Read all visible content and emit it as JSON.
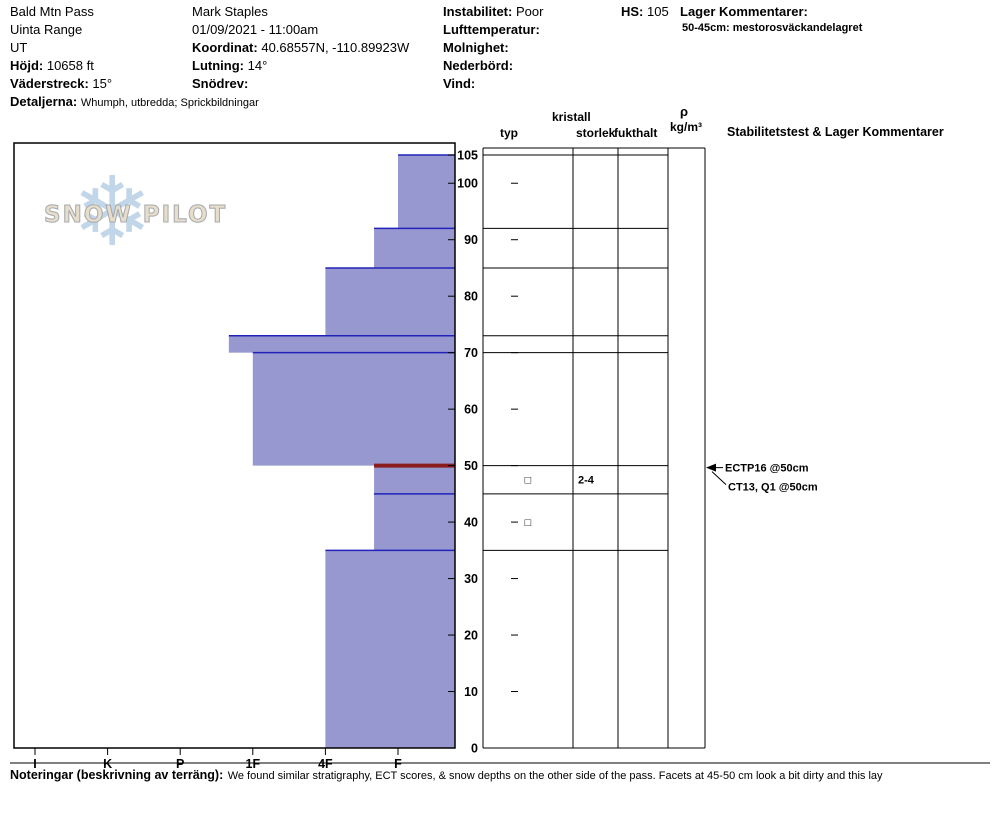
{
  "header": {
    "location": {
      "site": "Bald Mtn Pass",
      "range": "Uinta Range",
      "state": "UT"
    },
    "elevation": {
      "label": "Höjd:",
      "value": "10658 ft"
    },
    "aspect": {
      "label": "Väderstreck:",
      "value": "15°"
    },
    "details": {
      "label": "Detaljerna:",
      "value": "Whumph, utbredda;  Sprickbildningar"
    },
    "observer": "Mark Staples",
    "datetime": "01/09/2021 - 11:00am",
    "coordinates": {
      "label": "Koordinat:",
      "value": "40.68557N, -110.89923W"
    },
    "slope_angle": {
      "label": "Lutning:",
      "value": "14°"
    },
    "wind_drift": {
      "label": "Snödrev:",
      "value": ""
    },
    "instability": {
      "label": "Instabilitet:",
      "value": "Poor"
    },
    "air_temperature": {
      "label": "Lufttemperatur:",
      "value": ""
    },
    "sky_cover": {
      "label": "Molnighet:",
      "value": ""
    },
    "precipitation": {
      "label": "Nederbörd:",
      "value": ""
    },
    "wind": {
      "label": "Vind:",
      "value": ""
    },
    "snow_height": {
      "label": "HS:",
      "value": "105"
    },
    "layer_comments": {
      "label": "Lager Kommentarer:",
      "value": "50-45cm: mestorosväckandelagret"
    }
  },
  "watermark": {
    "text": "SNOW PILOT",
    "snowflake": "❄"
  },
  "grid_headers": {
    "grain_type": "typ",
    "crystal_line1": "kristall",
    "crystal_line2": "storlek",
    "moisture": "fukthalt",
    "density_line1": "ρ",
    "density_line2": "kg/m³",
    "stability": "Stabilitetstest & Lager Kommentarer"
  },
  "chart_data": {
    "type": "bar",
    "subtype": "snow-hardness-profile",
    "depth_unit": "cm",
    "depth_max": 105,
    "depth_ticks": [
      0,
      10,
      20,
      30,
      40,
      50,
      60,
      70,
      80,
      90,
      100,
      105
    ],
    "hardness_categories": [
      "I",
      "K",
      "P",
      "1F",
      "4F",
      "F"
    ],
    "layers": [
      {
        "top_cm": 105,
        "bottom_cm": 92,
        "hardness": "F",
        "hardness_num": 1
      },
      {
        "top_cm": 92,
        "bottom_cm": 85,
        "hardness": "F+",
        "hardness_num": 1.33
      },
      {
        "top_cm": 85,
        "bottom_cm": 73,
        "hardness": "4F",
        "hardness_num": 2
      },
      {
        "top_cm": 73,
        "bottom_cm": 70,
        "hardness": "1F+",
        "hardness_num": 3.33
      },
      {
        "top_cm": 70,
        "bottom_cm": 50,
        "hardness": "1F",
        "hardness_num": 3
      },
      {
        "top_cm": 50,
        "bottom_cm": 45,
        "hardness": "F+",
        "hardness_num": 1.33,
        "weak_layer": true,
        "grain_symbol": "□",
        "grain_size": "2-4"
      },
      {
        "top_cm": 45,
        "bottom_cm": 35,
        "hardness": "F+",
        "hardness_num": 1.33,
        "grain_symbol": "□"
      },
      {
        "top_cm": 35,
        "bottom_cm": 0,
        "hardness": "4F",
        "hardness_num": 2
      }
    ],
    "stability_tests": [
      {
        "label": "ECTP16 @50cm",
        "depth_cm": 50
      },
      {
        "label": "CT13, Q1 @50cm",
        "depth_cm": 50
      }
    ],
    "colors": {
      "bar_fill": "#9898d0",
      "layer_line": "#2222bb",
      "weak_layer_line": "#8b1d1d",
      "axis": "#000000"
    }
  },
  "footer": {
    "label": "Noteringar (beskrivning av terräng):",
    "text": "We found similar stratigraphy, ECT scores, & snow depths on the other side of the pass. Facets at 45-50 cm look a bit dirty and this lay"
  }
}
